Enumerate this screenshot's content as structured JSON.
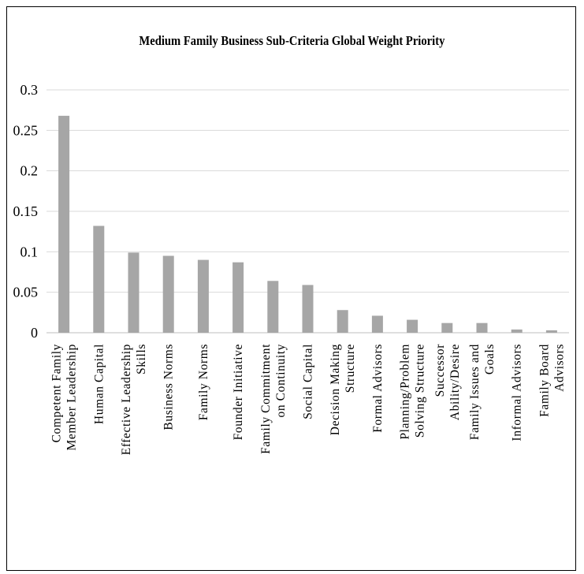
{
  "chart_data": {
    "type": "bar",
    "title": "Medium Family Business Sub-Criteria Global Weight Priority",
    "xlabel": "",
    "ylabel": "",
    "ylim": [
      0,
      0.3
    ],
    "yticks": [
      "0",
      "0.05",
      "0.1",
      "0.15",
      "0.2",
      "0.25",
      "0.3"
    ],
    "grid": true,
    "bar_color": "#a6a6a6",
    "categories": [
      [
        "Competent Family",
        "Member Leadership"
      ],
      [
        "Human Capital"
      ],
      [
        "Effective Leadership",
        "Skills"
      ],
      [
        "Business Norms"
      ],
      [
        "Family Norms"
      ],
      [
        "Founder Initiative"
      ],
      [
        "Family Commitment",
        "on Continuity"
      ],
      [
        "Social Capital"
      ],
      [
        "Decision Making",
        "Structure"
      ],
      [
        "Formal Advisors"
      ],
      [
        "Planning/Problem",
        "Solving Structure"
      ],
      [
        "Successor",
        "Ability/Desire"
      ],
      [
        "Family Issues and",
        "Goals"
      ],
      [
        "Informal Advisors"
      ],
      [
        "Family Board",
        "Advisors"
      ]
    ],
    "values": [
      0.268,
      0.132,
      0.099,
      0.095,
      0.09,
      0.087,
      0.064,
      0.059,
      0.028,
      0.021,
      0.016,
      0.012,
      0.012,
      0.004,
      0.003
    ]
  }
}
